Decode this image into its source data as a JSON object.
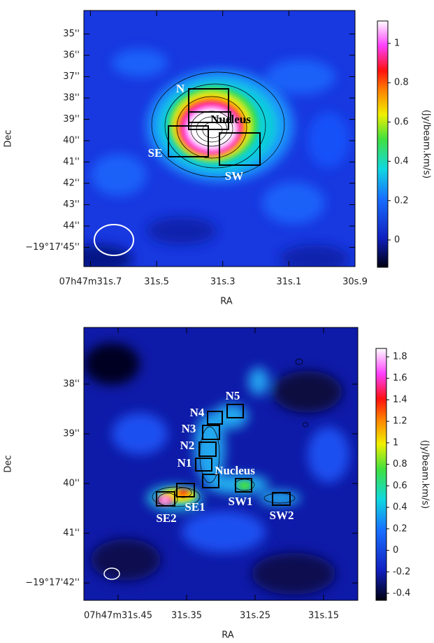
{
  "chart_data": [
    {
      "type": "image",
      "xlabel": "RA",
      "ylabel": "Dec",
      "xlim": [
        31.72,
        30.9
      ],
      "ylim": [
        33.9,
        45.9
      ],
      "xticks": [
        {
          "value": 31.7,
          "label": "07h47m31s.7"
        },
        {
          "value": 31.5,
          "label": "31s.5"
        },
        {
          "value": 31.3,
          "label": "31s.3"
        },
        {
          "value": 31.1,
          "label": "31s.1"
        },
        {
          "value": 30.9,
          "label": "30s.9"
        }
      ],
      "yticks": [
        {
          "value": 35,
          "label": "35''"
        },
        {
          "value": 36,
          "label": "36''"
        },
        {
          "value": 37,
          "label": "37''"
        },
        {
          "value": 38,
          "label": "38''"
        },
        {
          "value": 39,
          "label": "39''"
        },
        {
          "value": 40,
          "label": "40''"
        },
        {
          "value": 41,
          "label": "41''"
        },
        {
          "value": 42,
          "label": "42''"
        },
        {
          "value": 43,
          "label": "43''"
        },
        {
          "value": 44,
          "label": "44''"
        },
        {
          "value": 45,
          "label": "−19°17'45''"
        }
      ],
      "clabel": "(Jy/beam.km/s)",
      "clim": [
        -0.139,
        1.114
      ],
      "cticks": [
        0,
        0.2,
        0.4,
        0.6,
        0.8,
        1
      ],
      "regions": [
        "N",
        "Nucleus",
        "SE",
        "SW"
      ]
    },
    {
      "type": "image",
      "xlabel": "RA",
      "ylabel": "Dec",
      "xlim": [
        31.5,
        31.1
      ],
      "ylim": [
        36.86,
        42.35
      ],
      "xticks": [
        {
          "value": 31.45,
          "label": "07h47m31s.45"
        },
        {
          "value": 31.35,
          "label": "31s.35"
        },
        {
          "value": 31.25,
          "label": "31s.25"
        },
        {
          "value": 31.15,
          "label": "31s.15"
        }
      ],
      "yticks": [
        {
          "value": 38,
          "label": "38''"
        },
        {
          "value": 39,
          "label": "39''"
        },
        {
          "value": 40,
          "label": "40''"
        },
        {
          "value": 41,
          "label": "41''"
        },
        {
          "value": 42,
          "label": "−19°17'42''"
        }
      ],
      "clabel": "(Jy/beam.km/s)",
      "clim": [
        -0.465,
        1.878
      ],
      "cticks": [
        -0.4,
        -0.2,
        0,
        0.2,
        0.4,
        0.6,
        0.8,
        1,
        1.2,
        1.4,
        1.6,
        1.8
      ],
      "regions": [
        "N5",
        "N4",
        "N3",
        "N2",
        "N1",
        "Nucleus",
        "SW1",
        "SE1",
        "SE2",
        "SW2"
      ]
    }
  ]
}
